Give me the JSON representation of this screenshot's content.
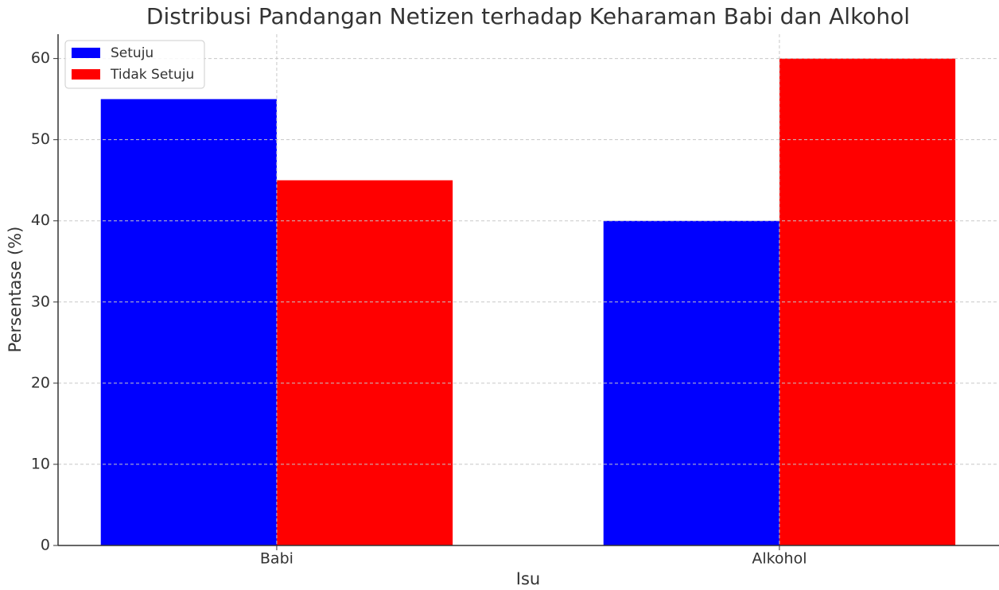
{
  "chart_data": {
    "type": "bar",
    "title": "Distribusi Pandangan Netizen terhadap Keharaman Babi dan Alkohol",
    "x_label": "Isu",
    "y_label": "Persentase (%)",
    "categories": [
      "Babi",
      "Alkohol"
    ],
    "series": [
      {
        "name": "Setuju",
        "color": "#0000ff",
        "values": [
          55,
          40
        ]
      },
      {
        "name": "Tidak Setuju",
        "color": "#ff0000",
        "values": [
          45,
          60
        ]
      }
    ],
    "ylim": [
      0,
      63
    ],
    "yticks": [
      0,
      10,
      20,
      30,
      40,
      50,
      60
    ],
    "grid": true,
    "legend": "upper left"
  }
}
